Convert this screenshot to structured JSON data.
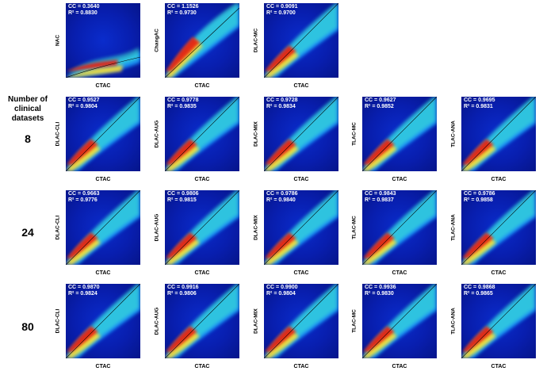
{
  "header": {
    "line1": "Number of",
    "line2": "clinical datasets"
  },
  "rows": [
    {
      "count": "",
      "panels": [
        {
          "ylabel": "NAC",
          "xlabel": "CTAC",
          "cc": "CC = 0.3640",
          "r2": "R² = 0.8830",
          "shape": "flat"
        },
        {
          "ylabel": "ChangAC",
          "xlabel": "CTAC",
          "cc": "CC = 1.1526",
          "r2": "R² = 0.9730",
          "shape": "steep"
        },
        {
          "ylabel": "DLAC-MC",
          "xlabel": "CTAC",
          "cc": "CC = 0.9091",
          "r2": "R² = 0.9700",
          "shape": "diag"
        }
      ]
    },
    {
      "count": "8",
      "panels": [
        {
          "ylabel": "DLAC-CLI",
          "xlabel": "CTAC",
          "cc": "CC = 0.9527",
          "r2": "R² = 0.9804",
          "shape": "diag"
        },
        {
          "ylabel": "DLAC-AUG",
          "xlabel": "CTAC",
          "cc": "CC = 0.9778",
          "r2": "R² = 0.9835",
          "shape": "diag"
        },
        {
          "ylabel": "DLAC-MIX",
          "xlabel": "CTAC",
          "cc": "CC = 0.9728",
          "r2": "R² = 0.9834",
          "shape": "diag"
        },
        {
          "ylabel": "TLAC-MC",
          "xlabel": "CTAC",
          "cc": "CC = 0.9627",
          "r2": "R² = 0.9852",
          "shape": "diag"
        },
        {
          "ylabel": "TLAC-ANA",
          "xlabel": "CTAC",
          "cc": "CC = 0.9695",
          "r2": "R² = 0.9831",
          "shape": "diag"
        }
      ]
    },
    {
      "count": "24",
      "panels": [
        {
          "ylabel": "DLAC-CLI",
          "xlabel": "CTAC",
          "cc": "CC = 0.9663",
          "r2": "R² = 0.9776",
          "shape": "diag"
        },
        {
          "ylabel": "DLAC-AUG",
          "xlabel": "CTAC",
          "cc": "CC = 0.9806",
          "r2": "R² = 0.9815",
          "shape": "diag"
        },
        {
          "ylabel": "DLAC-MIX",
          "xlabel": "CTAC",
          "cc": "CC = 0.9786",
          "r2": "R² = 0.9840",
          "shape": "diag"
        },
        {
          "ylabel": "TLAC-MC",
          "xlabel": "CTAC",
          "cc": "CC = 0.9843",
          "r2": "R² = 0.9837",
          "shape": "diag"
        },
        {
          "ylabel": "TLAC-ANA",
          "xlabel": "CTAC",
          "cc": "CC = 0.9786",
          "r2": "R² = 0.9858",
          "shape": "diag"
        }
      ]
    },
    {
      "count": "80",
      "panels": [
        {
          "ylabel": "DLAC-CLI",
          "xlabel": "CTAC",
          "cc": "CC = 0.9870",
          "r2": "R² = 0.9824",
          "shape": "diag"
        },
        {
          "ylabel": "DLAC-AUG",
          "xlabel": "CTAC",
          "cc": "CC = 0.9916",
          "r2": "R² = 0.9806",
          "shape": "diag"
        },
        {
          "ylabel": "DLAC-MIX",
          "xlabel": "CTAC",
          "cc": "CC = 0.9900",
          "r2": "R² = 0.9804",
          "shape": "diag"
        },
        {
          "ylabel": "TLAC-MC",
          "xlabel": "CTAC",
          "cc": "CC = 0.9936",
          "r2": "R² = 0.9830",
          "shape": "diag"
        },
        {
          "ylabel": "TLAC-ANA",
          "xlabel": "CTAC",
          "cc": "CC = 0.9868",
          "r2": "R² = 0.9865",
          "shape": "diag"
        }
      ]
    }
  ]
}
